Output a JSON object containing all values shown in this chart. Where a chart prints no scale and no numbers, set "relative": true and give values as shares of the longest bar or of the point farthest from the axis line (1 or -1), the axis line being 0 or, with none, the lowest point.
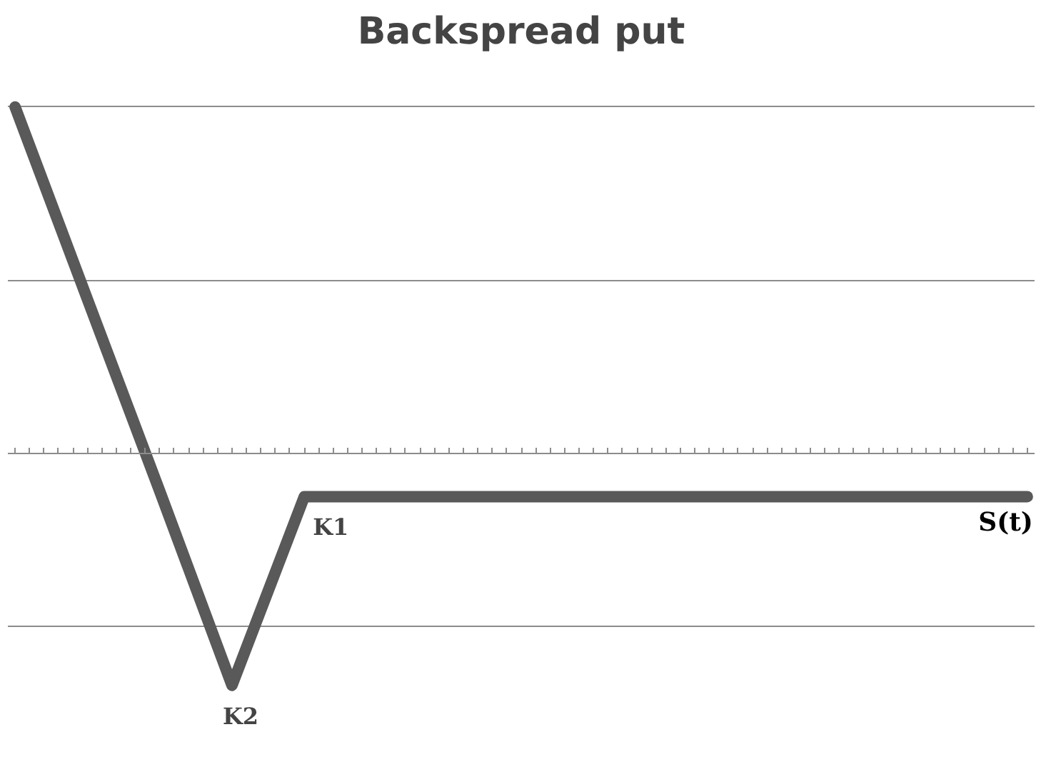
{
  "chart_data": {
    "type": "line",
    "title": "Backspread put",
    "xlabel": "S(t)",
    "relative": true,
    "categories": [
      null,
      null,
      null,
      null,
      null,
      null,
      null,
      null,
      null,
      null,
      null,
      null,
      null,
      null,
      null
    ],
    "series": [
      {
        "color": "#595959",
        "values": [
          1,
          0.445,
          -0.109,
          -0.67,
          -0.125,
          -0.125,
          -0.125,
          -0.125,
          -0.125,
          -0.125,
          -0.125,
          -0.125,
          -0.125,
          -0.125,
          -0.125
        ]
      }
    ],
    "annotations": [
      {
        "text": "K1",
        "y": -0.125
      },
      {
        "text": "K2",
        "y": -0.67
      }
    ],
    "grid": "y",
    "marker": "none",
    "line_style": "solid"
  }
}
